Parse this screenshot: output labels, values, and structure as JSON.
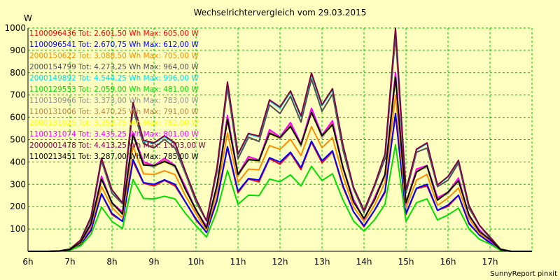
{
  "chart_data": {
    "type": "line",
    "title": "Wechselrichtervergleich vom 29.03.2015",
    "ylabel": "W",
    "credit": "SunnyReport pinxit",
    "ylim": [
      0,
      1000
    ],
    "xlim": [
      6,
      18
    ],
    "y_ticks": [
      100,
      200,
      300,
      400,
      500,
      600,
      700,
      800,
      900,
      1000
    ],
    "x_ticks": [
      {
        "label": "6h",
        "value": 6
      },
      {
        "label": "7h",
        "value": 7
      },
      {
        "label": "8h",
        "value": 8
      },
      {
        "label": "9h",
        "value": 9
      },
      {
        "label": "10h",
        "value": 10
      },
      {
        "label": "11h",
        "value": 11
      },
      {
        "label": "12h",
        "value": 12
      },
      {
        "label": "13h",
        "value": 13
      },
      {
        "label": "14h",
        "value": 14
      },
      {
        "label": "15h",
        "value": 15
      },
      {
        "label": "16h",
        "value": 16
      },
      {
        "label": "17h",
        "value": 17
      }
    ],
    "grid": true,
    "x": [
      6,
      6.25,
      6.5,
      6.75,
      7,
      7.25,
      7.5,
      7.75,
      8,
      8.25,
      8.5,
      8.75,
      9,
      9.25,
      9.5,
      9.75,
      10,
      10.25,
      10.5,
      10.75,
      11,
      11.25,
      11.5,
      11.75,
      12,
      12.25,
      12.5,
      12.75,
      13,
      13.25,
      13.5,
      13.75,
      14,
      14.25,
      14.5,
      14.75,
      15,
      15.25,
      15.5,
      15.75,
      16,
      16.25,
      16.5,
      16.75,
      17,
      17.25,
      17.5,
      17.75,
      18
    ],
    "series": [
      {
        "name": "1100096436 Tot: 2.601,50 Wh Max: 605,00 W",
        "color": "#ff0000",
        "scale": 0.61
      },
      {
        "name": "1100096541 Tot: 2.670,75 Wh Max: 612,00 W",
        "color": "#0000ff",
        "scale": 0.62
      },
      {
        "name": "2000150622 Tot: 3.088,50 Wh Max: 705,00 W",
        "color": "#ff8c00",
        "scale": 0.705
      },
      {
        "name": "2000154799 Tot: 4.273,25 Wh Max: 964,00 W",
        "color": "#505050",
        "scale": 0.964
      },
      {
        "name": "2000149892 Tot: 4.544,25 Wh Max: 996,00 W",
        "color": "#00e0e0",
        "scale": 0.996
      },
      {
        "name": "1100129553 Tot: 2.059,00 Wh Max: 481,00 W",
        "color": "#00e000",
        "scale": 0.481
      },
      {
        "name": "1100130966 Tot: 3.373,00 Wh Max: 783,00 W",
        "color": "#909090",
        "scale": 0.783
      },
      {
        "name": "1100131006 Tot: 3.470,25 Wh Max: 791,00 W",
        "color": "#c08040",
        "scale": 0.791
      },
      {
        "name": "2000131025 Tot: 3.352,75 Wh Max: 782,00 W",
        "color": "#ffff00",
        "scale": 0.782
      },
      {
        "name": "1100131074 Tot: 3.435,25 Wh Max: 801,00 W",
        "color": "#ff00ff",
        "scale": 0.801
      },
      {
        "name": "2000001478 Tot: 4.413,25 Wh Max: 1.003,00 W",
        "color": "#800040",
        "scale": 1.003
      },
      {
        "name": "1100213451 Tot: 3.287,00 Wh Max: 785,00 W",
        "color": "#000000",
        "scale": 0.785
      }
    ],
    "profile": [
      0,
      0,
      0,
      0.002,
      0.01,
      0.05,
      0.15,
      0.42,
      0.27,
      0.22,
      0.66,
      0.5,
      0.48,
      0.52,
      0.48,
      0.36,
      0.23,
      0.14,
      0.37,
      0.76,
      0.43,
      0.53,
      0.51,
      0.68,
      0.64,
      0.72,
      0.6,
      0.8,
      0.65,
      0.73,
      0.47,
      0.29,
      0.18,
      0.3,
      0.43,
      1.0,
      0.27,
      0.46,
      0.48,
      0.3,
      0.33,
      0.41,
      0.2,
      0.12,
      0.06,
      0.01,
      0,
      0,
      0
    ]
  }
}
